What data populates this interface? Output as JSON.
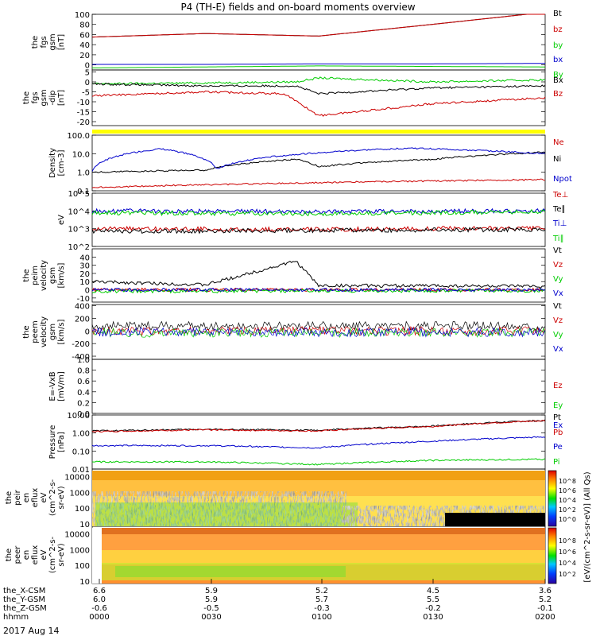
{
  "title": "P4 (TH-E) fields and on-board moments overview",
  "date_label": "2017 Aug 14",
  "orbit_rows": [
    {
      "label": "the_X-CSM",
      "values": [
        "6.6",
        "5.9",
        "5.2",
        "4.5",
        "3.6"
      ]
    },
    {
      "label": "the_Y-GSM",
      "values": [
        "6.0",
        "5.9",
        "5.7",
        "5.5",
        "5.2"
      ]
    },
    {
      "label": "the_Z-GSM",
      "values": [
        "-0.6",
        "-0.5",
        "-0.3",
        "-0.2",
        "-0.1"
      ]
    },
    {
      "label": "hhmm",
      "values": [
        "0000",
        "0030",
        "0100",
        "0130",
        "0200"
      ]
    }
  ],
  "colors": {
    "black": "#000000",
    "red": "#cc0000",
    "green": "#00cc00",
    "blue": "#0000cc",
    "yellow": "#ffff00"
  },
  "spectro_colorbar": {
    "label": "[eV/(cm^2-s-sr-eV)] (All Qs)",
    "ticks": [
      "10^8",
      "10^6",
      "10^4",
      "10^2",
      "10^0"
    ],
    "ticks2": [
      "10^8",
      "10^6",
      "10^4",
      "10^2"
    ]
  },
  "chart_data": [
    {
      "type": "line",
      "ylabel": [
        "the",
        "fgs",
        "gsm",
        "[nT]"
      ],
      "ylim": [
        -10,
        100
      ],
      "yticks": [
        "100",
        "80",
        "60",
        "40",
        "20",
        "0"
      ],
      "series": [
        {
          "name": "Bt",
          "color": "black",
          "x": [
            0,
            0.5,
            1,
            1.5,
            2
          ],
          "values": [
            55,
            62,
            57,
            80,
            104
          ]
        },
        {
          "name": "bz",
          "color": "red",
          "x": [
            0,
            0.5,
            1,
            1.5,
            2
          ],
          "values": [
            55,
            62,
            57,
            80,
            104
          ]
        },
        {
          "name": "by",
          "color": "green",
          "x": [
            0,
            0.5,
            1,
            1.5,
            2
          ],
          "values": [
            -6,
            -4,
            -2,
            -3,
            -4
          ]
        },
        {
          "name": "bx",
          "color": "blue",
          "x": [
            0,
            0.5,
            1,
            1.5,
            2
          ],
          "values": [
            1,
            1,
            2,
            2,
            3
          ]
        }
      ]
    },
    {
      "type": "line",
      "ylabel": [
        "the",
        "fgs",
        "gsm",
        "-dip",
        "[nT]"
      ],
      "ylim": [
        -22,
        6
      ],
      "yticks": [
        "5",
        "0",
        "-5",
        "-10",
        "-15",
        "-20"
      ],
      "series": [
        {
          "name": "By",
          "color": "green",
          "x": [
            0,
            0.5,
            0.9,
            1.0,
            1.5,
            2
          ],
          "values": [
            -1,
            -0.5,
            0,
            2,
            0,
            1
          ]
        },
        {
          "name": "Bx",
          "color": "black",
          "x": [
            0,
            0.5,
            0.9,
            1.0,
            1.5,
            2
          ],
          "values": [
            -1,
            -2,
            -2,
            -6,
            -3,
            -2
          ]
        },
        {
          "name": "Bz",
          "color": "red",
          "x": [
            0,
            0.5,
            0.85,
            1.0,
            1.5,
            2
          ],
          "values": [
            -7,
            -5,
            -6,
            -17,
            -11,
            -8
          ]
        }
      ]
    },
    {
      "type": "line",
      "ylabel": [
        "Density",
        "[cm-3]"
      ],
      "log": true,
      "ylim": [
        0.1,
        100
      ],
      "yticks": [
        "100.0",
        "10.0",
        "1.0",
        "0.1"
      ],
      "series": [
        {
          "name": "Ne",
          "color": "red",
          "x": [
            0,
            2
          ],
          "values": [
            0.15,
            0.4
          ]
        },
        {
          "name": "Ni",
          "color": "black",
          "x": [
            0,
            0.5,
            0.9,
            1.0,
            1.5,
            2
          ],
          "values": [
            1,
            1.3,
            5,
            2,
            5,
            12
          ]
        },
        {
          "name": "Npot",
          "color": "blue",
          "x": [
            0,
            0.3,
            0.55,
            1.4,
            2
          ],
          "values": [
            1.2,
            18,
            1.5,
            20,
            10
          ]
        }
      ]
    },
    {
      "type": "line",
      "ylabel": [
        "eV"
      ],
      "log": true,
      "ylim": [
        100,
        100000
      ],
      "yticks": [
        "10^5",
        "10^4",
        "10^3",
        "10^2"
      ],
      "series": [
        {
          "name": "Te⊥",
          "color": "red",
          "x": [
            0,
            1,
            2
          ],
          "values": [
            1000,
            900,
            1100
          ]
        },
        {
          "name": "Te∥",
          "color": "black",
          "x": [
            0,
            1,
            2
          ],
          "values": [
            700,
            800,
            900
          ]
        },
        {
          "name": "Ti⊥",
          "color": "blue",
          "x": [
            0,
            1,
            2
          ],
          "values": [
            10000,
            9000,
            10000
          ]
        },
        {
          "name": "Ti∥",
          "color": "green",
          "x": [
            0,
            1,
            2
          ],
          "values": [
            8000,
            7000,
            9000
          ]
        }
      ]
    },
    {
      "type": "line",
      "ylabel": [
        "the",
        "peim",
        "velocity",
        "gsm",
        "[km/s]"
      ],
      "ylim": [
        -15,
        50
      ],
      "yticks": [
        "40",
        "30",
        "20",
        "10",
        "0",
        "-10"
      ],
      "series": [
        {
          "name": "Vt",
          "color": "black",
          "x": [
            0,
            0.5,
            0.9,
            1.0,
            1.5,
            2
          ],
          "values": [
            10,
            6,
            35,
            5,
            5,
            4
          ]
        },
        {
          "name": "Vz",
          "color": "red",
          "x": [
            0,
            2
          ],
          "values": [
            0,
            0
          ]
        },
        {
          "name": "Vy",
          "color": "green",
          "x": [
            0,
            2
          ],
          "values": [
            -2,
            -1
          ]
        },
        {
          "name": "Vx",
          "color": "blue",
          "x": [
            0,
            2
          ],
          "values": [
            0,
            0
          ]
        }
      ]
    },
    {
      "type": "line",
      "ylabel": [
        "the",
        "peem",
        "velocity",
        "gsm",
        "[km/s]"
      ],
      "ylim": [
        -450,
        420
      ],
      "yticks": [
        "400",
        "200",
        "0",
        "-200",
        "-400"
      ],
      "series": [
        {
          "name": "Vt",
          "color": "black",
          "x": [
            0,
            2
          ],
          "values": [
            80,
            80
          ]
        },
        {
          "name": "Vz",
          "color": "red",
          "x": [
            0,
            2
          ],
          "values": [
            0,
            0
          ]
        },
        {
          "name": "Vy",
          "color": "green",
          "x": [
            0,
            2
          ],
          "values": [
            -30,
            -30
          ]
        },
        {
          "name": "Vx",
          "color": "blue",
          "x": [
            0,
            2
          ],
          "values": [
            -20,
            -20
          ]
        }
      ]
    },
    {
      "type": "line",
      "ylabel": [
        "E=-VxB",
        "[mV/m]"
      ],
      "ylim": [
        0,
        1
      ],
      "yticks": [
        "1.0",
        "0.8",
        "0.6",
        "0.4",
        "0.2",
        "0.0"
      ],
      "series": [
        {
          "name": "Ez",
          "color": "red",
          "x": [],
          "values": []
        },
        {
          "name": "Ey",
          "color": "green",
          "x": [],
          "values": []
        },
        {
          "name": "Ex",
          "color": "blue",
          "x": [],
          "values": []
        }
      ]
    },
    {
      "type": "line",
      "ylabel": [
        "Pressure",
        "[nPa]"
      ],
      "log": true,
      "ylim": [
        0.01,
        10
      ],
      "yticks": [
        "10.00",
        "1.00",
        "0.10",
        "0.01"
      ],
      "series": [
        {
          "name": "Pt",
          "color": "black",
          "x": [
            0,
            0.5,
            1,
            1.5,
            2
          ],
          "values": [
            1.3,
            1.6,
            1.4,
            2.4,
            5
          ]
        },
        {
          "name": "Pb",
          "color": "red",
          "x": [
            0,
            0.5,
            1,
            1.5,
            2
          ],
          "values": [
            1.2,
            1.5,
            1.3,
            2.3,
            4.8
          ]
        },
        {
          "name": "Pe",
          "color": "blue",
          "x": [
            0,
            0.5,
            1,
            1.5,
            2
          ],
          "values": [
            0.2,
            0.2,
            0.15,
            0.35,
            0.6
          ]
        },
        {
          "name": "Pi",
          "color": "green",
          "x": [
            0,
            0.5,
            1,
            1.5,
            2
          ],
          "values": [
            0.025,
            0.025,
            0.018,
            0.03,
            0.035
          ]
        }
      ]
    },
    {
      "type": "heatmap",
      "ylabel": [
        "the",
        "peir",
        "en",
        "eflux",
        "eV",
        "(cm^2-s-",
        "sr-eV)"
      ],
      "log": true,
      "ylim": [
        7,
        30000
      ],
      "yticks": [
        "10000",
        "1000",
        "100",
        "10"
      ]
    },
    {
      "type": "heatmap",
      "ylabel": [
        "the",
        "peer",
        "en",
        "eflux",
        "eV",
        "(cm^2-s-",
        "sr-eV)"
      ],
      "log": true,
      "ylim": [
        7,
        30000
      ],
      "yticks": [
        "10000",
        "1000",
        "100",
        "10"
      ]
    }
  ]
}
